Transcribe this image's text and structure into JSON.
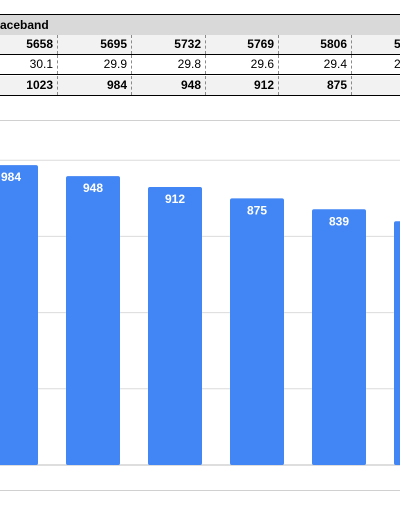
{
  "sheet": {
    "title": "aceband",
    "header": [
      "5658",
      "5695",
      "5732",
      "5769",
      "5806",
      "5"
    ],
    "row_mid": [
      "30.1",
      "29.9",
      "29.8",
      "29.6",
      "29.4",
      "2"
    ],
    "row_bottom": [
      "1023",
      "984",
      "948",
      "912",
      "875",
      ""
    ]
  },
  "chart_data": {
    "type": "bar",
    "values": [
      984,
      948,
      912,
      875,
      839,
      800
    ],
    "value_labels": [
      "984",
      "948",
      "912",
      "875",
      "839",
      ""
    ],
    "ylim": [
      0,
      1050
    ],
    "grid": true,
    "bar_color": "#4285f4"
  }
}
